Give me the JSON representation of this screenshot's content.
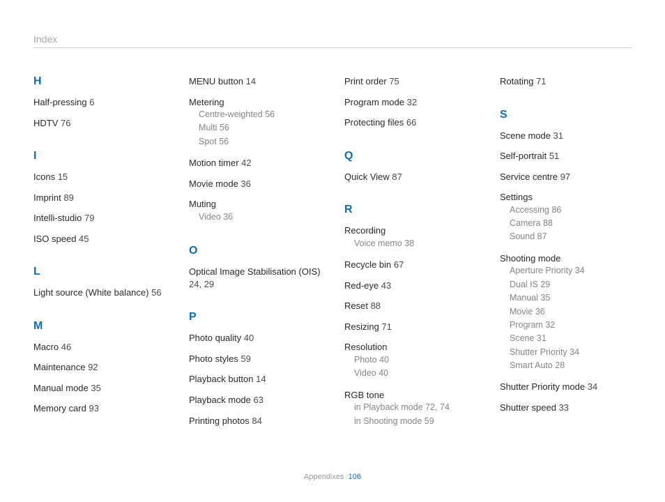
{
  "header": "Index",
  "footer_label": "Appendixes",
  "footer_page": "106",
  "columns": [
    [
      {
        "type": "letter",
        "text": "H",
        "first": true
      },
      {
        "type": "entry",
        "text": "Half-pressing",
        "pages": "6"
      },
      {
        "type": "entry",
        "text": "HDTV",
        "pages": "76"
      },
      {
        "type": "letter",
        "text": "I"
      },
      {
        "type": "entry",
        "text": "Icons",
        "pages": "15"
      },
      {
        "type": "entry",
        "text": "Imprint",
        "pages": "89"
      },
      {
        "type": "entry",
        "text": "Intelli-studio",
        "pages": "79"
      },
      {
        "type": "entry",
        "text": "ISO speed",
        "pages": "45"
      },
      {
        "type": "letter",
        "text": "L"
      },
      {
        "type": "entry",
        "text": "Light source (White balance)",
        "pages": "56"
      },
      {
        "type": "letter",
        "text": "M"
      },
      {
        "type": "entry",
        "text": "Macro",
        "pages": "46"
      },
      {
        "type": "entry",
        "text": "Maintenance",
        "pages": "92"
      },
      {
        "type": "entry",
        "text": "Manual mode",
        "pages": "35"
      },
      {
        "type": "entry",
        "text": "Memory card",
        "pages": "93"
      }
    ],
    [
      {
        "type": "entry",
        "text": "MENU button",
        "pages": "14",
        "first": true
      },
      {
        "type": "entry",
        "text": "Metering",
        "subs": [
          {
            "text": "Centre-weighted",
            "pages": "56"
          },
          {
            "text": "Multi",
            "pages": "56"
          },
          {
            "text": "Spot",
            "pages": "56"
          }
        ]
      },
      {
        "type": "entry",
        "text": "Motion timer",
        "pages": "42"
      },
      {
        "type": "entry",
        "text": "Movie mode",
        "pages": "36"
      },
      {
        "type": "entry",
        "text": "Muting",
        "subs": [
          {
            "text": "Video",
            "pages": "36"
          }
        ]
      },
      {
        "type": "letter",
        "text": "O"
      },
      {
        "type": "entry",
        "text": "Optical Image Stabilisation (OIS)",
        "pages": "24, 29"
      },
      {
        "type": "letter",
        "text": "P"
      },
      {
        "type": "entry",
        "text": "Photo quality",
        "pages": "40"
      },
      {
        "type": "entry",
        "text": "Photo styles",
        "pages": "59"
      },
      {
        "type": "entry",
        "text": "Playback button",
        "pages": "14"
      },
      {
        "type": "entry",
        "text": "Playback mode",
        "pages": "63"
      },
      {
        "type": "entry",
        "text": "Printing photos",
        "pages": "84"
      }
    ],
    [
      {
        "type": "entry",
        "text": "Print order",
        "pages": "75",
        "first": true
      },
      {
        "type": "entry",
        "text": "Program mode",
        "pages": "32"
      },
      {
        "type": "entry",
        "text": "Protecting files",
        "pages": "66"
      },
      {
        "type": "letter",
        "text": "Q"
      },
      {
        "type": "entry",
        "text": "Quick View",
        "pages": "87"
      },
      {
        "type": "letter",
        "text": "R"
      },
      {
        "type": "entry",
        "text": "Recording",
        "subs": [
          {
            "text": "Voice memo",
            "pages": "38"
          }
        ]
      },
      {
        "type": "entry",
        "text": "Recycle bin",
        "pages": "67"
      },
      {
        "type": "entry",
        "text": "Red-eye",
        "pages": "43"
      },
      {
        "type": "entry",
        "text": "Reset",
        "pages": "88"
      },
      {
        "type": "entry",
        "text": "Resizing",
        "pages": "71"
      },
      {
        "type": "entry",
        "text": "Resolution",
        "subs": [
          {
            "text": "Photo",
            "pages": "40"
          },
          {
            "text": "Video",
            "pages": "40"
          }
        ]
      },
      {
        "type": "entry",
        "text": "RGB tone",
        "subs": [
          {
            "text": "in Playback mode",
            "pages": "72, 74"
          },
          {
            "text": "in Shooting mode",
            "pages": "59"
          }
        ]
      }
    ],
    [
      {
        "type": "entry",
        "text": "Rotating",
        "pages": "71",
        "first": true
      },
      {
        "type": "letter",
        "text": "S"
      },
      {
        "type": "entry",
        "text": "Scene mode",
        "pages": "31"
      },
      {
        "type": "entry",
        "text": "Self-portrait",
        "pages": "51"
      },
      {
        "type": "entry",
        "text": "Service centre",
        "pages": "97"
      },
      {
        "type": "entry",
        "text": "Settings",
        "subs": [
          {
            "text": "Accessing",
            "pages": "86"
          },
          {
            "text": "Camera",
            "pages": "88"
          },
          {
            "text": "Sound",
            "pages": "87"
          }
        ]
      },
      {
        "type": "entry",
        "text": "Shooting mode",
        "subs": [
          {
            "text": "Aperture Priority",
            "pages": "34"
          },
          {
            "text": "Dual IS",
            "pages": "29"
          },
          {
            "text": "Manual",
            "pages": "35"
          },
          {
            "text": "Movie",
            "pages": "36"
          },
          {
            "text": "Program",
            "pages": "32"
          },
          {
            "text": "Scene",
            "pages": "31"
          },
          {
            "text": "Shutter Priority",
            "pages": "34"
          },
          {
            "text": "Smart Auto",
            "pages": "28"
          }
        ]
      },
      {
        "type": "entry",
        "text": "Shutter Priority mode",
        "pages": "34"
      },
      {
        "type": "entry",
        "text": "Shutter speed",
        "pages": "33"
      }
    ]
  ]
}
